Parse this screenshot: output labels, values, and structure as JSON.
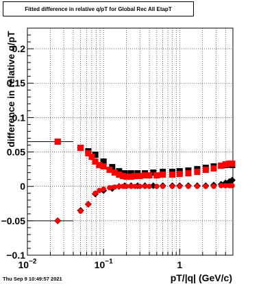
{
  "chart_data": {
    "type": "scatter",
    "title": "Fitted difference in relative q/pT for Global Rec All EtapT",
    "xlabel": "pT/|q| (GeV/c)",
    "ylabel": "difference in relative q/pT",
    "x_scale": "log",
    "xlim": [
      0.01,
      5
    ],
    "ylim": [
      -0.1,
      0.23
    ],
    "y_ticks": [
      -0.1,
      -0.05,
      0,
      0.05,
      0.1,
      0.15,
      0.2
    ],
    "y_tick_labels": [
      "−0.1",
      "−0.05",
      "0",
      "0.05",
      "0.1",
      "0.15",
      "0.2"
    ],
    "x_ticks": [
      0.01,
      0.1,
      1
    ],
    "x_tick_labels": [
      "10",
      "10",
      "1"
    ],
    "x_tick_exponents": [
      "−2",
      "−1",
      ""
    ],
    "grid": true,
    "series": [
      {
        "marker": "square",
        "color": "#000000",
        "x": [
          0.025,
          0.05,
          0.063,
          0.078,
          0.1,
          0.13,
          0.16,
          0.19,
          0.23,
          0.28,
          0.35,
          0.45,
          0.6,
          0.8,
          1.0,
          1.3,
          1.7,
          2.2,
          2.8,
          3.5,
          4.0,
          4.5,
          5.0
        ],
        "y": [
          0.065,
          0.056,
          0.051,
          0.046,
          0.036,
          0.028,
          0.022,
          0.019,
          0.019,
          0.019,
          0.019,
          0.02,
          0.021,
          0.021,
          0.022,
          0.023,
          0.025,
          0.027,
          0.029,
          0.03,
          0.031,
          0.032,
          0.031
        ]
      },
      {
        "marker": "diamond",
        "color": "#000000",
        "x": [
          0.025,
          0.05,
          0.063,
          0.078,
          0.1,
          0.13,
          0.16,
          0.19,
          0.23,
          0.28,
          0.35,
          0.45,
          0.6,
          0.8,
          1.0,
          1.3,
          1.7,
          2.2,
          2.8,
          3.5,
          4.0,
          4.5,
          5.0
        ],
        "y": [
          -0.05,
          -0.035,
          -0.026,
          -0.011,
          -0.006,
          -0.003,
          0.0,
          0.001,
          0.001,
          0.001,
          0.001,
          0.001,
          0.001,
          0.001,
          0.001,
          0.001,
          0.001,
          0.001,
          0.002,
          0.003,
          0.005,
          0.007,
          0.009
        ]
      },
      {
        "marker": "square",
        "color": "#ff0000",
        "x": [
          0.025,
          0.05,
          0.063,
          0.07,
          0.078,
          0.088,
          0.1,
          0.12,
          0.14,
          0.16,
          0.18,
          0.2,
          0.23,
          0.26,
          0.3,
          0.35,
          0.4,
          0.5,
          0.6,
          0.8,
          1.0,
          1.3,
          1.7,
          2.2,
          2.8,
          3.5,
          4.0,
          4.5,
          5.0
        ],
        "y": [
          0.065,
          0.056,
          0.048,
          0.043,
          0.036,
          0.031,
          0.029,
          0.024,
          0.02,
          0.017,
          0.015,
          0.014,
          0.014,
          0.015,
          0.015,
          0.016,
          0.016,
          0.016,
          0.017,
          0.017,
          0.018,
          0.019,
          0.021,
          0.024,
          0.026,
          0.03,
          0.032,
          0.033,
          0.033
        ]
      },
      {
        "marker": "circle",
        "color": "#ff0000",
        "x": [
          0.025,
          0.05,
          0.063,
          0.078,
          0.088,
          0.1,
          0.12,
          0.14,
          0.16,
          0.18,
          0.2,
          0.23,
          0.26,
          0.3,
          0.35,
          0.4,
          0.5,
          0.6,
          0.8,
          1.0,
          1.3,
          1.7,
          2.2,
          2.8,
          3.5,
          4.0,
          4.5,
          5.0
        ],
        "y": [
          -0.05,
          -0.036,
          -0.026,
          -0.01,
          -0.006,
          -0.004,
          -0.002,
          -0.001,
          0.0,
          0.0,
          0.0,
          0.0,
          0.0,
          0.0,
          0.0,
          0.0,
          0.0,
          0.0,
          0.0,
          0.0,
          0.0,
          0.0,
          0.0,
          0.0,
          0.001,
          0.001,
          0.001,
          0.001
        ]
      }
    ],
    "x_errors": [
      {
        "x": 0.025,
        "xlo": 0.01,
        "xhi": 0.04,
        "y": 0.065
      },
      {
        "x": 0.025,
        "xlo": 0.01,
        "xhi": 0.04,
        "y": -0.05
      },
      {
        "x": 0.05,
        "xlo": 0.045,
        "xhi": 0.055,
        "y": 0.056
      },
      {
        "x": 0.05,
        "xlo": 0.045,
        "xhi": 0.055,
        "y": -0.035
      }
    ]
  },
  "footer": {
    "timestamp": "Thu Sep  9 10:49:57 2021"
  }
}
